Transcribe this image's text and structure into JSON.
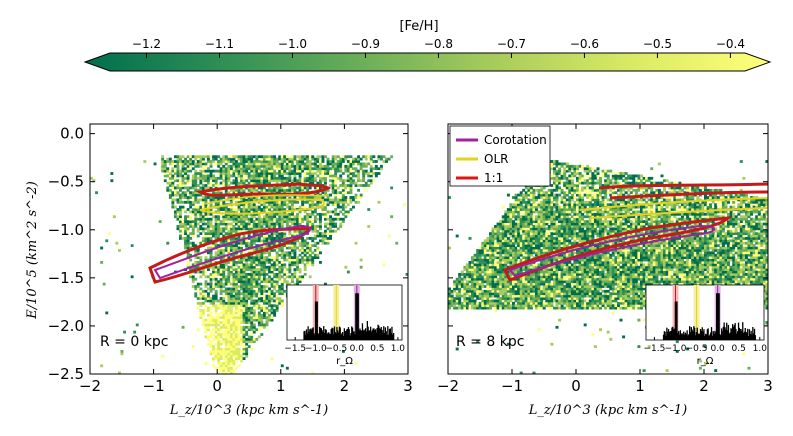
{
  "chart_data": {
    "colorbar": {
      "label": "[Fe/H]",
      "ticks": [
        "−1.2",
        "−1.1",
        "−1.0",
        "−0.9",
        "−0.8",
        "−0.7",
        "−0.6",
        "−0.5",
        "−0.4"
      ],
      "range": [
        -1.25,
        -0.38
      ],
      "colors": [
        "#006e4e",
        "#2f8f55",
        "#6aae59",
        "#a8cc5c",
        "#daea64",
        "#ffff7a"
      ]
    },
    "legend": [
      {
        "name": "Corotation",
        "color": "#a020a0"
      },
      {
        "name": "OLR",
        "color": "#e6d21c"
      },
      {
        "name": "1:1",
        "color": "#e01515"
      }
    ],
    "panels": [
      {
        "type": "heatmap",
        "annotation": "R = 0 kpc",
        "xlabel": "L_z/10^3 (kpc km s^-1)",
        "ylabel": "E/10^5 (km^2 s^-2)",
        "xlim": [
          -2,
          3
        ],
        "ylim": [
          -2.5,
          0.1
        ],
        "xticks": [
          "−2",
          "−1",
          "0",
          "1",
          "2",
          "3"
        ],
        "yticks": [
          "0.0",
          "−0.5",
          "−1.0",
          "−1.5",
          "−2.0",
          "−2.5"
        ],
        "inset": {
          "xlabel": "r_Ω",
          "xticks": [
            "−1.5",
            "−1.0",
            "−0.5",
            "0.0",
            "0.5",
            "1.0"
          ],
          "resonances": {
            "one_to_one": -1.0,
            "olr": -0.5,
            "corotation": 0.0
          }
        }
      },
      {
        "type": "heatmap",
        "annotation": "R = 8 kpc",
        "xlabel": "L_z/10^3 (kpc km s^-1)",
        "ylabel": "",
        "xlim": [
          -2,
          3
        ],
        "ylim": [
          -2.5,
          0.1
        ],
        "xticks": [
          "−2",
          "−1",
          "0",
          "1",
          "2",
          "3"
        ],
        "yticks": [],
        "inset": {
          "xlabel": "r_Ω",
          "xticks": [
            "−1.5",
            "−1.0",
            "−0.5",
            "0.0",
            "0.5",
            "1.0"
          ],
          "resonances": {
            "one_to_one": -1.0,
            "olr": -0.5,
            "corotation": 0.0
          }
        }
      }
    ]
  }
}
